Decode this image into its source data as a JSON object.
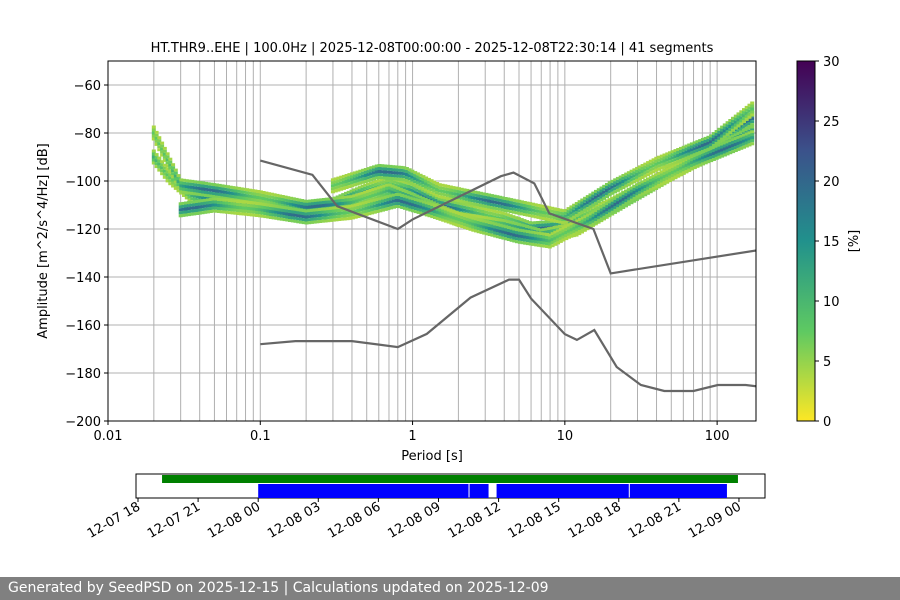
{
  "chart_data": {
    "type": "heatmap",
    "title": "HT.THR9..EHE | 100.0Hz | 2025-12-08T00:00:00 - 2025-12-08T22:30:14 | 41 segments",
    "xlabel": "Period [s]",
    "ylabel": "Amplitude [m^2/s^4/Hz] [dB]",
    "xscale": "log",
    "xlim": [
      0.01,
      180
    ],
    "ylim": [
      -200,
      -50
    ],
    "x_ticks": [
      {
        "value": 0.01,
        "label": "0.01"
      },
      {
        "value": 0.1,
        "label": "0.1"
      },
      {
        "value": 1,
        "label": "1"
      },
      {
        "value": 10,
        "label": "10"
      },
      {
        "value": 100,
        "label": "100"
      }
    ],
    "y_ticks": [
      {
        "value": -60,
        "label": "−60"
      },
      {
        "value": -80,
        "label": "−80"
      },
      {
        "value": -100,
        "label": "−100"
      },
      {
        "value": -120,
        "label": "−120"
      },
      {
        "value": -140,
        "label": "−140"
      },
      {
        "value": -160,
        "label": "−160"
      },
      {
        "value": -180,
        "label": "−180"
      },
      {
        "value": -200,
        "label": "−200"
      }
    ],
    "colorbar": {
      "label": "[%]",
      "range": [
        0,
        30
      ],
      "ticks": [
        {
          "value": 0,
          "label": "0"
        },
        {
          "value": 5,
          "label": "5"
        },
        {
          "value": 10,
          "label": "10"
        },
        {
          "value": 15,
          "label": "15"
        },
        {
          "value": 20,
          "label": "20"
        },
        {
          "value": 25,
          "label": "25"
        },
        {
          "value": 30,
          "label": "30"
        }
      ],
      "colormap": [
        "#fde725",
        "#5ec962",
        "#21918c",
        "#3b528b",
        "#440154"
      ]
    },
    "psd_bands": [
      {
        "name": "band-a",
        "points": [
          [
            0.02,
            -90
          ],
          [
            0.025,
            -98
          ],
          [
            0.035,
            -106
          ],
          [
            0.05,
            -108
          ],
          [
            0.08,
            -109
          ],
          [
            0.15,
            -112
          ],
          [
            0.3,
            -110
          ],
          [
            0.5,
            -104
          ],
          [
            0.7,
            -101
          ],
          [
            1.0,
            -104
          ],
          [
            1.5,
            -110
          ],
          [
            2.5,
            -113
          ],
          [
            4,
            -116
          ],
          [
            6,
            -120
          ],
          [
            10,
            -119
          ],
          [
            20,
            -110
          ],
          [
            40,
            -100
          ],
          [
            80,
            -88
          ],
          [
            170,
            -74
          ]
        ]
      },
      {
        "name": "band-b",
        "points": [
          [
            0.02,
            -80
          ],
          [
            0.025,
            -92
          ],
          [
            0.03,
            -102
          ],
          [
            0.05,
            -104
          ],
          [
            0.1,
            -107
          ],
          [
            0.2,
            -111
          ],
          [
            0.4,
            -109
          ],
          [
            0.7,
            -104
          ],
          [
            1.2,
            -110
          ],
          [
            2,
            -116
          ],
          [
            4,
            -119
          ],
          [
            7,
            -123
          ],
          [
            12,
            -120
          ],
          [
            25,
            -108
          ],
          [
            50,
            -97
          ],
          [
            100,
            -87
          ],
          [
            170,
            -80
          ]
        ]
      },
      {
        "name": "band-c",
        "points": [
          [
            0.03,
            -112
          ],
          [
            0.05,
            -110
          ],
          [
            0.1,
            -112
          ],
          [
            0.2,
            -115
          ],
          [
            0.4,
            -113
          ],
          [
            0.8,
            -108
          ],
          [
            1.3,
            -112
          ],
          [
            2.5,
            -118
          ],
          [
            5,
            -123
          ],
          [
            8,
            -125
          ],
          [
            15,
            -116
          ],
          [
            30,
            -104
          ],
          [
            70,
            -92
          ],
          [
            170,
            -82
          ]
        ]
      },
      {
        "name": "band-d",
        "points": [
          [
            0.3,
            -102
          ],
          [
            0.6,
            -96
          ],
          [
            0.9,
            -97
          ],
          [
            1.5,
            -104
          ],
          [
            3,
            -108
          ],
          [
            6,
            -112
          ],
          [
            10,
            -115
          ],
          [
            20,
            -103
          ],
          [
            40,
            -93
          ],
          [
            90,
            -84
          ],
          [
            170,
            -70
          ]
        ]
      }
    ],
    "noise_models": [
      {
        "name": "high-noise-model",
        "points": [
          [
            0.1,
            -91.5
          ],
          [
            0.22,
            -97.4
          ],
          [
            0.32,
            -110.5
          ],
          [
            0.8,
            -120
          ],
          [
            1.0,
            -116
          ],
          [
            3.8,
            -98
          ],
          [
            4.6,
            -96.5
          ],
          [
            6.3,
            -101
          ],
          [
            7.9,
            -113.5
          ],
          [
            15.4,
            -120
          ],
          [
            20,
            -138.5
          ],
          [
            354.8,
            -126
          ]
        ]
      },
      {
        "name": "low-noise-model",
        "points": [
          [
            0.1,
            -168
          ],
          [
            0.17,
            -166.7
          ],
          [
            0.4,
            -166.7
          ],
          [
            0.8,
            -169.2
          ],
          [
            1.24,
            -163.7
          ],
          [
            2.4,
            -148.6
          ],
          [
            4.3,
            -141.1
          ],
          [
            5.0,
            -141.1
          ],
          [
            6.0,
            -149
          ],
          [
            10,
            -163.8
          ],
          [
            12,
            -166.2
          ],
          [
            15.6,
            -162.1
          ],
          [
            21.9,
            -177.5
          ],
          [
            31.6,
            -185
          ],
          [
            45,
            -187.5
          ],
          [
            70,
            -187.5
          ],
          [
            101,
            -185
          ],
          [
            154,
            -185
          ],
          [
            328,
            -187.5
          ]
        ]
      }
    ],
    "timeline": {
      "ticks": [
        {
          "label": "12-07 18"
        },
        {
          "label": "12-07 21"
        },
        {
          "label": "12-08 00"
        },
        {
          "label": "12-08 03"
        },
        {
          "label": "12-08 06"
        },
        {
          "label": "12-08 09"
        },
        {
          "label": "12-08 12"
        },
        {
          "label": "12-08 15"
        },
        {
          "label": "12-08 18"
        },
        {
          "label": "12-08 21"
        },
        {
          "label": "12-09 00"
        }
      ],
      "range_hours": [
        -6.1,
        25.3
      ],
      "data_available": {
        "start_hour": -4.8,
        "end_hour": 23.95,
        "color": "#008000"
      },
      "segments_used": [
        {
          "start_hour": 0.0,
          "end_hour": 10.5
        },
        {
          "start_hour": 10.55,
          "end_hour": 11.5
        },
        {
          "start_hour": 11.9,
          "end_hour": 18.5
        },
        {
          "start_hour": 18.55,
          "end_hour": 23.4
        }
      ],
      "segments_color": "#0000ff"
    }
  },
  "footer": {
    "text": "Generated by SeedPSD on 2025-12-15 | Calculations updated on 2025-12-09"
  }
}
